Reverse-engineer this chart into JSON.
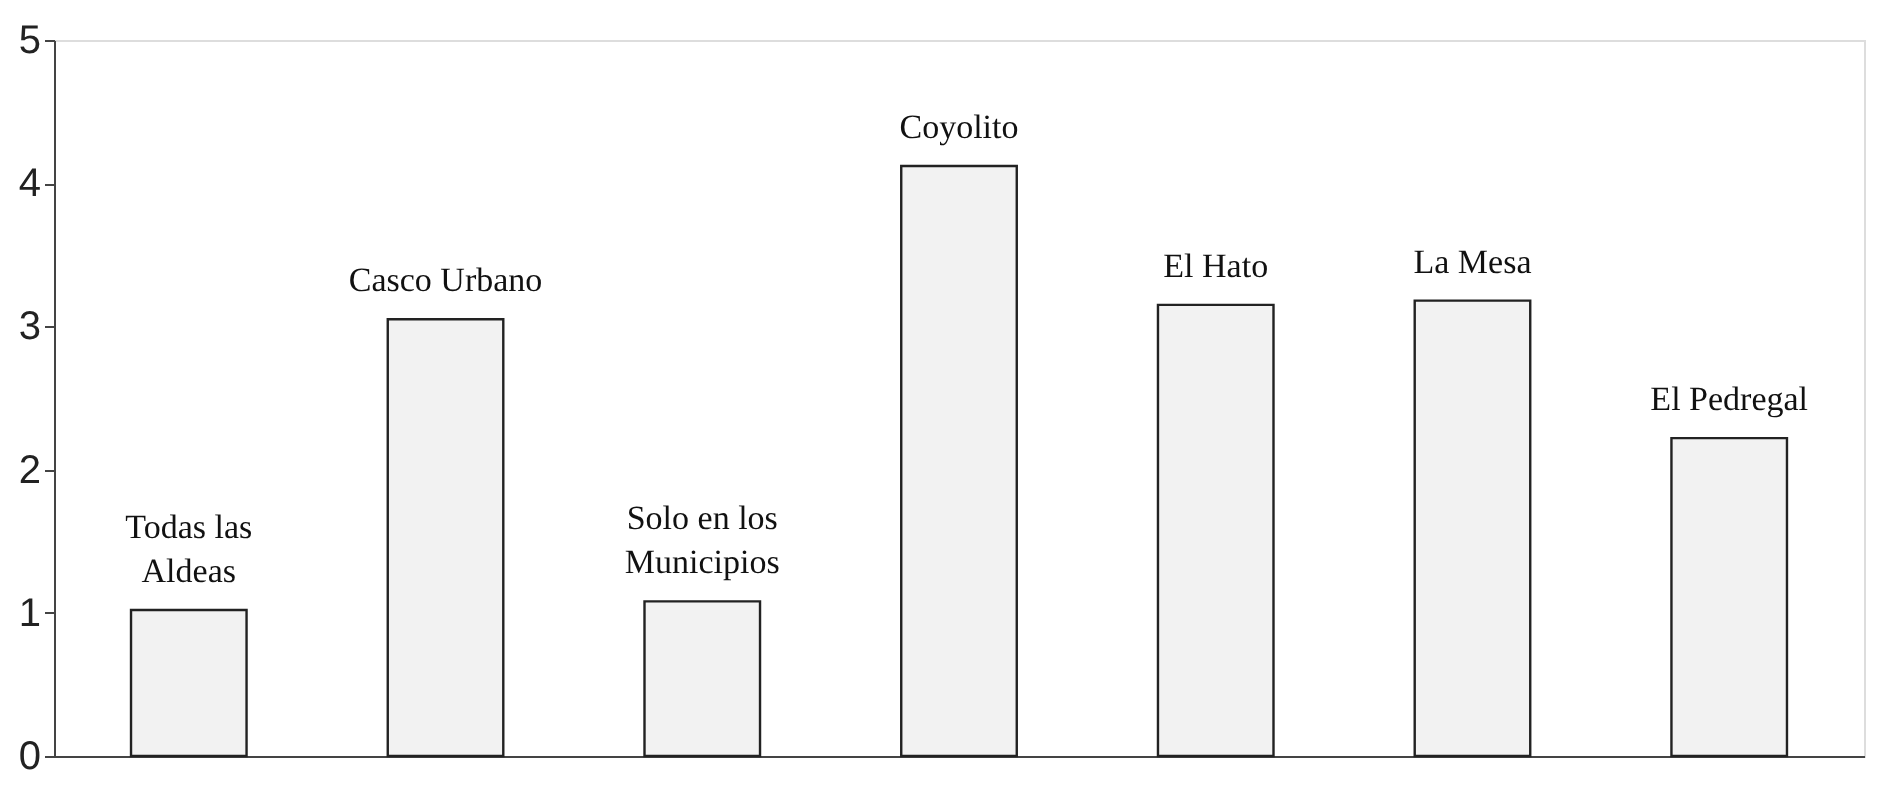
{
  "chart_data": {
    "type": "bar",
    "categories": [
      "Todas las\nAldeas",
      "Casco Urbano",
      "Solo en los\nMunicipios",
      "Coyolito",
      "El Hato",
      "La Mesa",
      "El Pedregal"
    ],
    "values": [
      1.02,
      3.05,
      1.08,
      4.12,
      3.15,
      3.18,
      2.22
    ],
    "color": "#f2f2f2",
    "ylim": [
      0,
      5
    ],
    "yticks": [
      0,
      1,
      2,
      3,
      4,
      5
    ],
    "grid": false,
    "tick_labels": "y"
  }
}
